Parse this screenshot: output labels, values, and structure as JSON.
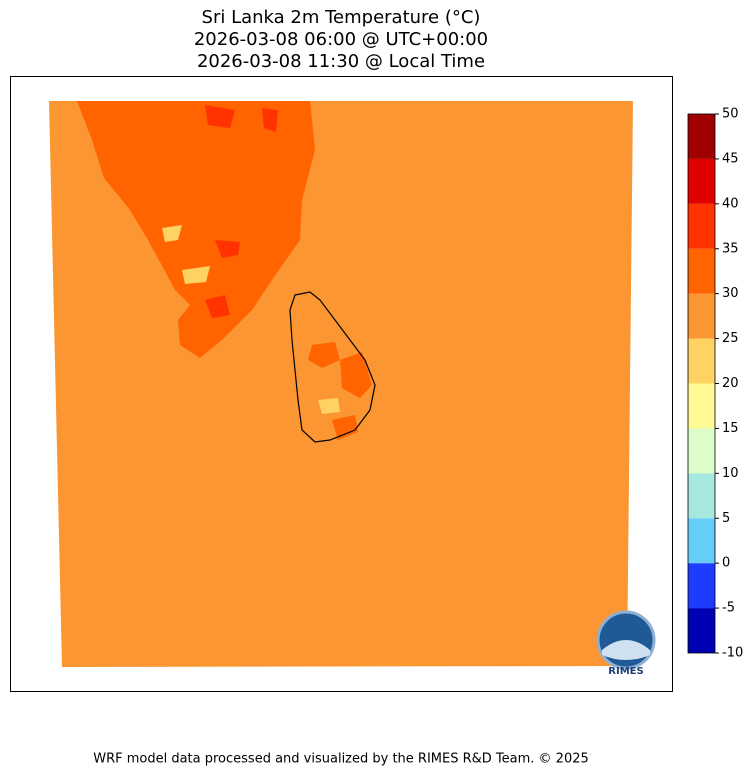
{
  "title": [
    "Sri Lanka 2m Temperature (°C)",
    "2026-03-08 06:00 @ UTC+00:00",
    "2026-03-08 11:30 @ Local Time"
  ],
  "colorbar": {
    "ticks": [
      -10,
      -5,
      0,
      5,
      10,
      15,
      20,
      25,
      30,
      35,
      40,
      45,
      50
    ],
    "colors": [
      "#0000b4",
      "#1e3cff",
      "#66ccf8",
      "#a6e8e0",
      "#dcfcc8",
      "#fffa96",
      "#ffd264",
      "#fb9632",
      "#ff6400",
      "#ff3200",
      "#e10000",
      "#a00000"
    ]
  },
  "logo": "RIMES",
  "footer": "WRF model data processed and visualized by the RIMES R&D Team. © 2025"
}
